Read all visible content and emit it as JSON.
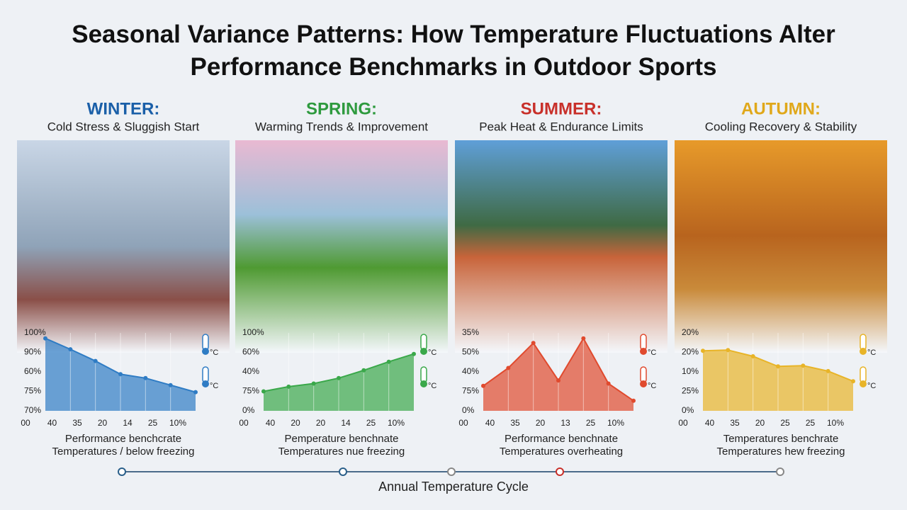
{
  "title": "Seasonal Variance Patterns: How Temperature Fluctuations Alter Performance Benchmarks in Outdoor Sports",
  "unit_label": "°C",
  "timeline_label": "Annual Temperature Cycle",
  "chart_data": [
    {
      "type": "area",
      "title": "WINTER:",
      "subtitle": "Cold Stress & Sluggish Start",
      "color": "#2f7cc4",
      "title_color": "#1a5fa8",
      "categories": [
        "00",
        "40",
        "35",
        "20",
        "14",
        "25",
        "10%"
      ],
      "values": [
        93,
        79,
        64,
        47,
        42,
        33,
        24
      ],
      "ylim": [
        0,
        100
      ],
      "y_axis_labels": [
        "100%",
        "90%",
        "60%",
        "75%",
        "70%"
      ],
      "caption": [
        "Performance benchcrate",
        "Temperatures / below freezing"
      ]
    },
    {
      "type": "area",
      "title": "SPRING:",
      "subtitle": "Warming Trends & Improvement",
      "color": "#3aa84a",
      "title_color": "#2e9a3e",
      "categories": [
        "00",
        "40",
        "20",
        "20",
        "14",
        "25",
        "10%"
      ],
      "values": [
        25,
        31,
        35,
        42,
        52,
        63,
        73
      ],
      "ylim": [
        0,
        100
      ],
      "y_axis_labels": [
        "100%",
        "60%",
        "40%",
        "75%",
        "0%"
      ],
      "caption": [
        "Pemperature benchnate",
        "Temperatures nue freezing"
      ]
    },
    {
      "type": "area",
      "title": "SUMMER:",
      "subtitle": "Peak Heat & Endurance Limits",
      "color": "#e04a2e",
      "title_color": "#c8302a",
      "categories": [
        "00",
        "40",
        "35",
        "20",
        "13",
        "25",
        "10%"
      ],
      "values": [
        32,
        55,
        87,
        39,
        93,
        35,
        13
      ],
      "ylim": [
        0,
        100
      ],
      "y_axis_labels": [
        "35%",
        "50%",
        "40%",
        "75%",
        "0%"
      ],
      "caption": [
        "Performance benchnate",
        "Temperatures overheating"
      ]
    },
    {
      "type": "area",
      "title": "AUTUMN:",
      "subtitle": "Cooling Recovery & Stability",
      "color": "#e8b428",
      "title_color": "#e0a81a",
      "categories": [
        "00",
        "40",
        "35",
        "20",
        "25",
        "25",
        "10%"
      ],
      "values": [
        77,
        78,
        70,
        57,
        58,
        51,
        38
      ],
      "ylim": [
        0,
        100
      ],
      "y_axis_labels": [
        "20%",
        "20%",
        "10%",
        "25%",
        "0%"
      ],
      "caption": [
        "Temperatures benchrate",
        "Temperatures hew freezing"
      ]
    }
  ]
}
